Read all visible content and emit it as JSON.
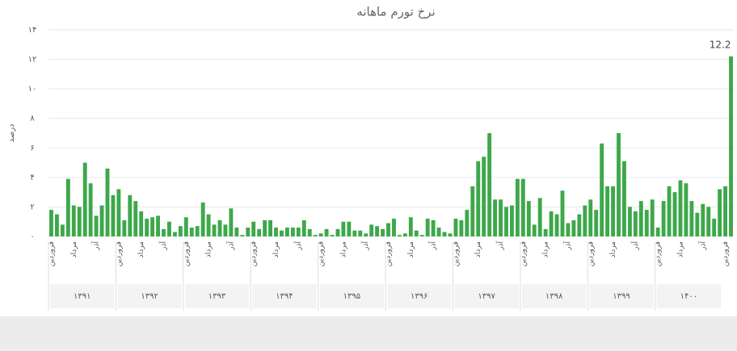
{
  "chart_data": {
    "type": "bar",
    "title": "نرخ تورم ماهانه",
    "y_label": "درصد",
    "color": "#3da84a",
    "categories": [
      "فروردین",
      null,
      null,
      null,
      "مرداد",
      null,
      null,
      null,
      "آذر",
      null,
      null,
      null,
      "فروردین",
      null,
      null,
      null,
      "مرداد",
      null,
      null,
      null,
      "آذر",
      null,
      null,
      null,
      "فروردین",
      null,
      null,
      null,
      "مرداد",
      null,
      null,
      null,
      "آذر",
      null,
      null,
      null,
      "فروردین",
      null,
      null,
      null,
      "مرداد",
      null,
      null,
      null,
      "آذر",
      null,
      null,
      null,
      "فروردین",
      null,
      null,
      null,
      "مرداد",
      null,
      null,
      null,
      "آذر",
      null,
      null,
      null,
      "فروردین",
      null,
      null,
      null,
      "مرداد",
      null,
      null,
      null,
      "آذر",
      null,
      null,
      null,
      "فروردین",
      null,
      null,
      null,
      "مرداد",
      null,
      null,
      null,
      "آذر",
      null,
      null,
      null,
      "فروردین",
      null,
      null,
      null,
      "مرداد",
      null,
      null,
      null,
      "آذر",
      null,
      null,
      null,
      "فروردین",
      null,
      null,
      null,
      "مرداد",
      null,
      null,
      null,
      "آذر",
      null,
      null,
      null,
      "فروردین",
      null,
      null,
      null,
      "مرداد",
      null,
      null,
      null,
      "آذر",
      null,
      null,
      null,
      "فروردین",
      null
    ],
    "x_groups": [
      "۱۳۹۱",
      "۱۳۹۲",
      "۱۳۹۳",
      "۱۳۹۴",
      "۱۳۹۵",
      "۱۳۹۶",
      "۱۳۹۷",
      "۱۳۹۸",
      "۱۳۹۹",
      "۱۴۰۰"
    ],
    "values": [
      1.8,
      1.5,
      0.8,
      3.9,
      2.1,
      2,
      5,
      3.6,
      1.4,
      2.1,
      4.6,
      2.8,
      3.2,
      1.1,
      2.8,
      2.4,
      1.7,
      1.2,
      1.3,
      1.4,
      0.5,
      1.0,
      0.3,
      0.7,
      1.3,
      0.6,
      0.7,
      2.3,
      1.5,
      0.8,
      1.1,
      0.8,
      1.9,
      0.6,
      0.1,
      0.6,
      1.0,
      0.5,
      1.1,
      1.1,
      0.6,
      0.4,
      0.6,
      0.6,
      0.6,
      1.1,
      0.5,
      0.1,
      0.2,
      0.5,
      0.1,
      0.5,
      1.0,
      1.0,
      0.4,
      0.4,
      0.2,
      0.8,
      0.7,
      0.5,
      0.9,
      1.2,
      0.1,
      0.2,
      1.3,
      0.4,
      0.1,
      1.2,
      1.1,
      0.6,
      0.3,
      0.2,
      1.2,
      1.1,
      1.8,
      3.4,
      5.1,
      5.4,
      7.0,
      2.5,
      2.5,
      2.0,
      2.1,
      3.9,
      3.9,
      2.4,
      0.8,
      2.6,
      0.5,
      1.7,
      1.5,
      3.1,
      0.9,
      1.1,
      1.5,
      2.1,
      2.5,
      1.8,
      6.3,
      3.4,
      3.4,
      7.0,
      5.1,
      2.0,
      1.7,
      2.4,
      1.8,
      2.5,
      0.6,
      2.4,
      3.4,
      3.0,
      3.8,
      3.6,
      2.4,
      1.6,
      2.2,
      2.0,
      1.2,
      3.2,
      3.4,
      12.2
    ],
    "data_labels": [
      121
    ],
    "ylim": [
      0,
      14
    ],
    "yticks": [
      {
        "value": 0,
        "label": "۰"
      },
      {
        "value": 2,
        "label": "۲"
      },
      {
        "value": 4,
        "label": "۴"
      },
      {
        "value": 6,
        "label": "۶"
      },
      {
        "value": 8,
        "label": "۸"
      },
      {
        "value": 10,
        "label": "۱۰"
      },
      {
        "value": 12,
        "label": "۱۲"
      },
      {
        "value": 14,
        "label": "۱۴"
      }
    ],
    "grid": true
  }
}
